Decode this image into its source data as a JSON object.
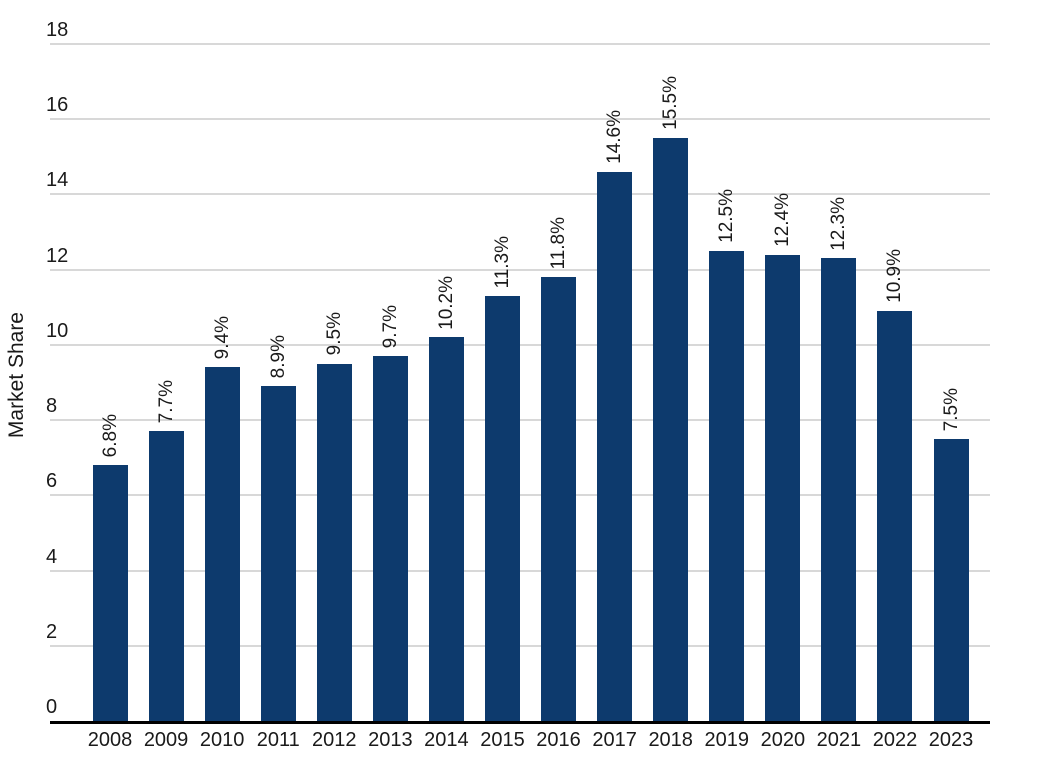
{
  "chart_data": {
    "type": "bar",
    "title": "",
    "ylabel": "Market Share",
    "xlabel": "",
    "categories": [
      "2008",
      "2009",
      "2010",
      "2011",
      "2012",
      "2013",
      "2014",
      "2015",
      "2016",
      "2017",
      "2018",
      "2019",
      "2020",
      "2021",
      "2022",
      "2023"
    ],
    "values": [
      6.8,
      7.7,
      9.4,
      8.9,
      9.5,
      9.7,
      10.2,
      11.3,
      11.8,
      14.6,
      15.5,
      12.5,
      12.4,
      12.3,
      10.9,
      7.5
    ],
    "value_labels": [
      "6.8%",
      "7.7%",
      "9.4%",
      "8.9%",
      "9.5%",
      "9.7%",
      "10.2%",
      "11.3%",
      "11.8%",
      "14.6%",
      "15.5%",
      "12.5%",
      "12.4%",
      "12.3%",
      "10.9%",
      "7.5%"
    ],
    "yticks": [
      0,
      2,
      4,
      6,
      8,
      10,
      12,
      14,
      16,
      18
    ],
    "ylim": [
      0,
      18
    ],
    "grid": "horizontal",
    "legend": "none",
    "value_label_rotation": -90,
    "colors": {
      "bar": "#0d3a6d",
      "gridline": "#d8d8d8",
      "axis_line": "#000000",
      "text": "#1a1a1a"
    }
  }
}
